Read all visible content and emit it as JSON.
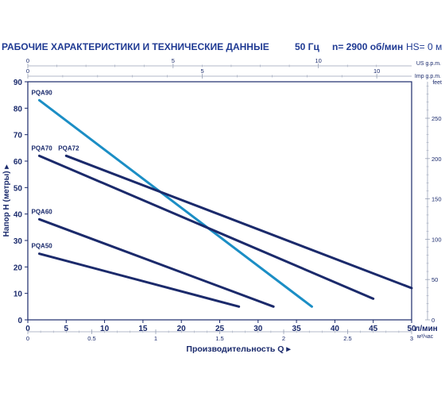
{
  "header": {
    "title": "РАБОЧИЕ ХАРАКТЕРИСТИКИ И ТЕХНИЧЕСКИЕ ДАННЫЕ",
    "frequency": "50 Гц",
    "speed": "n= 2900 об/мин",
    "hs": "HS= 0 м"
  },
  "colors": {
    "axis": "#1a2a6c",
    "grid": "#9aa3b8",
    "series_dark": "#1b2a6b",
    "series_light": "#1b8ec5"
  },
  "chart_data": {
    "type": "line",
    "title": "",
    "xlabel": "Производительность Q",
    "x_unit": "л/мин",
    "ylabel": "Напор H (метры)",
    "xlim": [
      0,
      50
    ],
    "ylim": [
      0,
      90
    ],
    "x_ticks": [
      0,
      5,
      10,
      15,
      20,
      25,
      30,
      35,
      40,
      45,
      50
    ],
    "y_ticks": [
      0,
      10,
      20,
      30,
      40,
      50,
      60,
      70,
      80,
      90
    ],
    "grid": false,
    "secondary_axes": {
      "top_us": {
        "label": "US g.p.m.",
        "ticks": [
          0,
          5,
          10
        ],
        "factor": 3.785
      },
      "top_imp": {
        "label": "Imp g.p.m.",
        "ticks": [
          0,
          5,
          10
        ],
        "factor": 4.546
      },
      "bottom_m3h": {
        "label": "м³/час",
        "ticks": [
          0,
          0.5,
          1,
          1.5,
          2,
          2.5,
          3
        ],
        "factor": 16.667
      },
      "right_feet": {
        "label": "feet",
        "ticks": [
          0,
          50,
          100,
          150,
          200,
          250
        ],
        "factor": 0.3048
      }
    },
    "series": [
      {
        "name": "PQA90",
        "color": "light",
        "x": [
          1.5,
          37
        ],
        "y": [
          83,
          5
        ]
      },
      {
        "name": "PQA70",
        "color": "dark",
        "x": [
          1.5,
          45
        ],
        "y": [
          62,
          8
        ]
      },
      {
        "name": "PQA72",
        "color": "dark",
        "x": [
          5,
          50
        ],
        "y": [
          62,
          12
        ]
      },
      {
        "name": "PQA60",
        "color": "dark",
        "x": [
          1.5,
          32
        ],
        "y": [
          38,
          5
        ]
      },
      {
        "name": "PQA50",
        "color": "dark",
        "x": [
          1.5,
          27.5
        ],
        "y": [
          25,
          5
        ]
      }
    ]
  }
}
